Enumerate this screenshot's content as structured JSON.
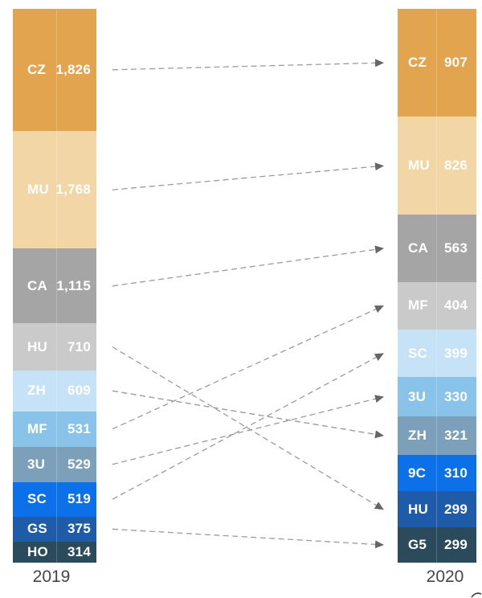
{
  "chart_data": {
    "type": "slope-stacked-bar",
    "title": "",
    "columns": [
      {
        "label": "2019",
        "segments": [
          {
            "code": "CZ",
            "value": 1826,
            "display": "1,826"
          },
          {
            "code": "MU",
            "value": 1768,
            "display": "1,768"
          },
          {
            "code": "CA",
            "value": 1115,
            "display": "1,115"
          },
          {
            "code": "HU",
            "value": 710,
            "display": "710"
          },
          {
            "code": "ZH",
            "value": 609,
            "display": "609"
          },
          {
            "code": "MF",
            "value": 531,
            "display": "531"
          },
          {
            "code": "3U",
            "value": 529,
            "display": "529"
          },
          {
            "code": "SC",
            "value": 519,
            "display": "519"
          },
          {
            "code": "GS",
            "value": 375,
            "display": "375"
          },
          {
            "code": "HO",
            "value": 314,
            "display": "314"
          }
        ]
      },
      {
        "label": "2020",
        "segments": [
          {
            "code": "CZ",
            "value": 907,
            "display": "907"
          },
          {
            "code": "MU",
            "value": 826,
            "display": "826"
          },
          {
            "code": "CA",
            "value": 563,
            "display": "563"
          },
          {
            "code": "MF",
            "value": 404,
            "display": "404"
          },
          {
            "code": "SC",
            "value": 399,
            "display": "399"
          },
          {
            "code": "3U",
            "value": 330,
            "display": "330"
          },
          {
            "code": "ZH",
            "value": 321,
            "display": "321"
          },
          {
            "code": "9C",
            "value": 310,
            "display": "310"
          },
          {
            "code": "HU",
            "value": 299,
            "display": "299"
          },
          {
            "code": "G5",
            "value": 299,
            "display": "299"
          }
        ]
      }
    ],
    "palette": [
      "#E2A44E",
      "#F2D6A6",
      "#A5A5A5",
      "#CACACA",
      "#C6E2F7",
      "#8AC3EA",
      "#7DA0BA",
      "#0C70E9",
      "#1E5CA9",
      "#2B4A5C"
    ],
    "links": [
      [
        "CZ",
        "CZ"
      ],
      [
        "MU",
        "MU"
      ],
      [
        "CA",
        "CA"
      ],
      [
        "HU",
        "HU"
      ],
      [
        "ZH",
        "ZH"
      ],
      [
        "MF",
        "MF"
      ],
      [
        "3U",
        "3U"
      ],
      [
        "SC",
        "SC"
      ],
      [
        "GS",
        "G5"
      ]
    ],
    "arrow_line_color": "#9B9B9B",
    "arrowhead_color": "#666666",
    "segment_text_color": "#FFFFFF",
    "axis_label_color": "#454545",
    "layout": {
      "bars_normalized_to_full_height": true,
      "grid": false,
      "legend": "none"
    }
  }
}
